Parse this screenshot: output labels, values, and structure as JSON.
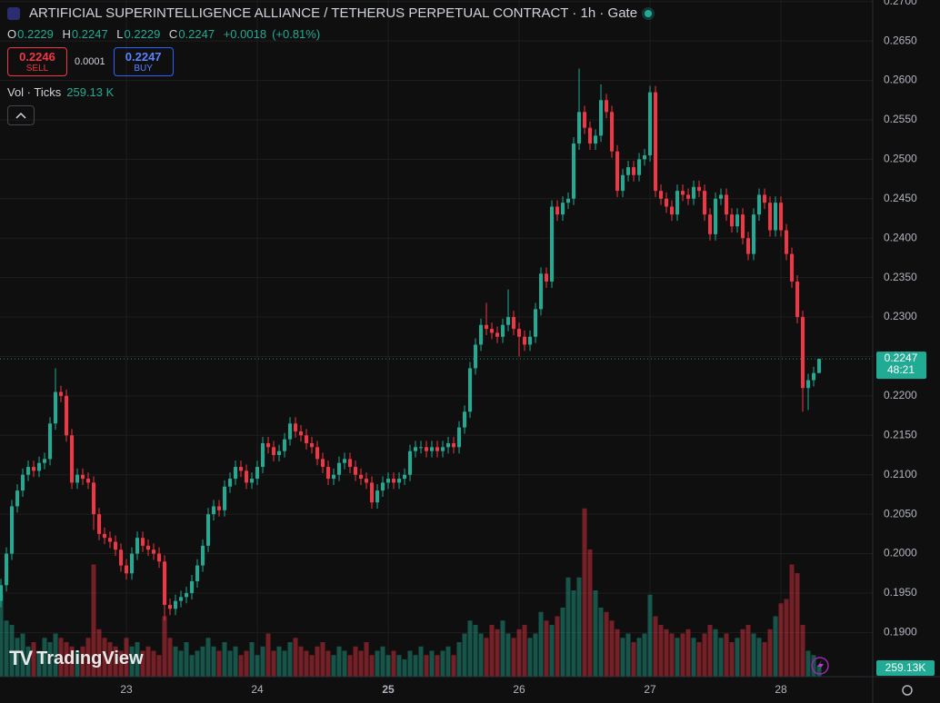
{
  "chart_data": {
    "type": "candlestick",
    "title": "ARTIFICIAL SUPERINTELLIGENCE ALLIANCE / TETHERUS PERPETUAL CONTRACT · 1h · Gate",
    "ohlc_labels": [
      "O",
      "H",
      "L",
      "C"
    ],
    "change": "+0.0018",
    "change_pct": "(+0.81%)",
    "trade": {
      "sell_price": "0.2246",
      "sell_label": "SELL",
      "spread": "0.0001",
      "buy_price": "0.2247",
      "buy_label": "BUY"
    },
    "volume_title": "Vol · Ticks",
    "volume_header_label": "259.13 K",
    "last_volume_label": "259.13K",
    "countdown": "48:21",
    "brand": "TradingView",
    "up_color": "#22ab94",
    "down_color": "#f23645",
    "grid": true,
    "xlim": [
      -0.17,
      159.83
    ],
    "xticks": [
      {
        "value": 23,
        "label": "23"
      },
      {
        "value": 47,
        "label": "24"
      },
      {
        "value": 71,
        "label": "25"
      },
      {
        "value": 95,
        "label": "26"
      },
      {
        "value": 119,
        "label": "27"
      },
      {
        "value": 143,
        "label": "28"
      }
    ],
    "ylim": [
      0.1844,
      0.2702
    ],
    "yticks": [
      {
        "value": 0.19,
        "label": "0.1900"
      },
      {
        "value": 0.195,
        "label": "0.1950"
      },
      {
        "value": 0.2,
        "label": "0.2000"
      },
      {
        "value": 0.205,
        "label": "0.2050"
      },
      {
        "value": 0.21,
        "label": "0.2100"
      },
      {
        "value": 0.215,
        "label": "0.2150"
      },
      {
        "value": 0.22,
        "label": "0.2200"
      },
      {
        "value": 0.225,
        "label": "0.2250"
      },
      {
        "value": 0.23,
        "label": "0.2300"
      },
      {
        "value": 0.235,
        "label": "0.2350"
      },
      {
        "value": 0.24,
        "label": "0.2400"
      },
      {
        "value": 0.245,
        "label": "0.2450"
      },
      {
        "value": 0.25,
        "label": "0.2500"
      },
      {
        "value": 0.255,
        "label": "0.2550"
      },
      {
        "value": 0.26,
        "label": "0.2600"
      },
      {
        "value": 0.265,
        "label": "0.2650"
      },
      {
        "value": 0.27,
        "label": "0.2700"
      }
    ],
    "volume_lim": [
      0,
      4000
    ],
    "open": [
      0.194,
      0.196,
      0.2,
      0.206,
      0.208,
      0.21,
      0.211,
      0.2105,
      0.2115,
      0.212,
      0.2165,
      0.2205,
      0.22,
      0.215,
      0.209,
      0.21,
      0.2095,
      0.209,
      0.205,
      0.2025,
      0.202,
      0.2015,
      0.2005,
      0.1985,
      0.1975,
      0.2,
      0.202,
      0.201,
      0.2005,
      0.2,
      0.199,
      0.1935,
      0.193,
      0.194,
      0.1945,
      0.195,
      0.1965,
      0.1985,
      0.201,
      0.205,
      0.206,
      0.2055,
      0.2085,
      0.2095,
      0.211,
      0.2105,
      0.209,
      0.2095,
      0.211,
      0.214,
      0.2135,
      0.2125,
      0.213,
      0.2145,
      0.2165,
      0.2155,
      0.215,
      0.214,
      0.2135,
      0.212,
      0.211,
      0.2095,
      0.21,
      0.2115,
      0.212,
      0.211,
      0.21,
      0.2095,
      0.209,
      0.2065,
      0.208,
      0.209,
      0.2095,
      0.209,
      0.2095,
      0.21,
      0.213,
      0.2135,
      0.2135,
      0.213,
      0.2135,
      0.213,
      0.2135,
      0.214,
      0.2135,
      0.216,
      0.218,
      0.2235,
      0.2265,
      0.229,
      0.2285,
      0.228,
      0.2275,
      0.229,
      0.23,
      0.2285,
      0.2275,
      0.2265,
      0.2275,
      0.231,
      0.2355,
      0.2345,
      0.244,
      0.243,
      0.2445,
      0.245,
      0.252,
      0.256,
      0.254,
      0.252,
      0.253,
      0.2575,
      0.256,
      0.251,
      0.246,
      0.248,
      0.249,
      0.248,
      0.25,
      0.2505,
      0.2585,
      0.246,
      0.245,
      0.244,
      0.243,
      0.246,
      0.2455,
      0.245,
      0.2465,
      0.246,
      0.243,
      0.2405,
      0.245,
      0.2455,
      0.243,
      0.2415,
      0.243,
      0.24,
      0.238,
      0.243,
      0.2455,
      0.2445,
      0.241,
      0.2445,
      0.241,
      0.238,
      0.2345,
      0.23,
      0.221,
      0.222,
      0.2229
    ],
    "high": [
      0.1968,
      0.2008,
      0.2068,
      0.2088,
      0.2108,
      0.2118,
      0.2118,
      0.2123,
      0.2128,
      0.2173,
      0.2235,
      0.2213,
      0.2208,
      0.2158,
      0.2108,
      0.2108,
      0.2103,
      0.2098,
      0.2058,
      0.2033,
      0.2028,
      0.2023,
      0.2013,
      0.1993,
      0.2008,
      0.2028,
      0.2028,
      0.2018,
      0.2013,
      0.2008,
      0.1998,
      0.1943,
      0.1948,
      0.1953,
      0.1958,
      0.1973,
      0.1993,
      0.2018,
      0.2058,
      0.2068,
      0.2068,
      0.2093,
      0.2103,
      0.2118,
      0.2118,
      0.2113,
      0.2103,
      0.2118,
      0.2148,
      0.2148,
      0.2143,
      0.2138,
      0.2153,
      0.2173,
      0.2173,
      0.2163,
      0.2158,
      0.2148,
      0.2143,
      0.2128,
      0.2118,
      0.2108,
      0.2123,
      0.2128,
      0.2128,
      0.2118,
      0.2108,
      0.2103,
      0.2098,
      0.2088,
      0.2098,
      0.2103,
      0.2103,
      0.2103,
      0.2108,
      0.2138,
      0.2143,
      0.2143,
      0.2143,
      0.2143,
      0.2143,
      0.2143,
      0.2148,
      0.2148,
      0.2168,
      0.2188,
      0.2243,
      0.2273,
      0.2298,
      0.2318,
      0.2293,
      0.2288,
      0.2298,
      0.2335,
      0.2308,
      0.2293,
      0.2283,
      0.2283,
      0.2318,
      0.2363,
      0.2363,
      0.2448,
      0.2448,
      0.2453,
      0.2458,
      0.2528,
      0.2615,
      0.2568,
      0.2548,
      0.2538,
      0.2595,
      0.2583,
      0.2568,
      0.2518,
      0.2488,
      0.2498,
      0.2498,
      0.2508,
      0.2513,
      0.2593,
      0.2593,
      0.2468,
      0.2458,
      0.2448,
      0.2468,
      0.2468,
      0.2463,
      0.2473,
      0.2473,
      0.2468,
      0.2438,
      0.2458,
      0.2463,
      0.2463,
      0.2438,
      0.2438,
      0.2438,
      0.2408,
      0.2438,
      0.2463,
      0.2463,
      0.2453,
      0.2453,
      0.2453,
      0.2418,
      0.2388,
      0.2353,
      0.2308,
      0.2228,
      0.2237,
      0.2247
    ],
    "low": [
      0.1932,
      0.1952,
      0.1992,
      0.2052,
      0.2072,
      0.2092,
      0.2097,
      0.2097,
      0.2107,
      0.2112,
      0.2157,
      0.2192,
      0.2142,
      0.2082,
      0.2082,
      0.2087,
      0.2082,
      0.203,
      0.2017,
      0.2012,
      0.2007,
      0.1997,
      0.1977,
      0.1967,
      0.1967,
      0.1992,
      0.2002,
      0.1997,
      0.1992,
      0.1982,
      0.1915,
      0.1922,
      0.1922,
      0.1932,
      0.1937,
      0.1942,
      0.1957,
      0.1977,
      0.2002,
      0.2042,
      0.2047,
      0.2047,
      0.2077,
      0.2087,
      0.2097,
      0.2082,
      0.2082,
      0.2087,
      0.2102,
      0.2127,
      0.2117,
      0.2117,
      0.2122,
      0.2137,
      0.2147,
      0.2142,
      0.2132,
      0.2127,
      0.2112,
      0.2102,
      0.2087,
      0.2087,
      0.2092,
      0.2107,
      0.2102,
      0.2092,
      0.2087,
      0.2082,
      0.2057,
      0.2057,
      0.2072,
      0.2082,
      0.2082,
      0.2082,
      0.2087,
      0.2092,
      0.2122,
      0.2127,
      0.2122,
      0.2122,
      0.2122,
      0.2122,
      0.2127,
      0.2127,
      0.2127,
      0.2152,
      0.2172,
      0.2227,
      0.2257,
      0.2277,
      0.2272,
      0.2267,
      0.2267,
      0.2282,
      0.2277,
      0.225,
      0.2257,
      0.2257,
      0.2267,
      0.2302,
      0.2337,
      0.2337,
      0.2422,
      0.2422,
      0.2437,
      0.2442,
      0.2512,
      0.2532,
      0.2512,
      0.2512,
      0.2522,
      0.2552,
      0.2502,
      0.2452,
      0.2452,
      0.2472,
      0.2472,
      0.2472,
      0.2492,
      0.2497,
      0.2452,
      0.2442,
      0.2432,
      0.2422,
      0.2422,
      0.2447,
      0.2442,
      0.2442,
      0.2452,
      0.2422,
      0.2397,
      0.2397,
      0.2442,
      0.2422,
      0.2407,
      0.2407,
      0.2392,
      0.2372,
      0.2372,
      0.2422,
      0.2437,
      0.2402,
      0.2402,
      0.2402,
      0.2372,
      0.2337,
      0.2292,
      0.218,
      0.2182,
      0.2212,
      0.2229
    ],
    "close": [
      0.196,
      0.2,
      0.206,
      0.208,
      0.21,
      0.211,
      0.2105,
      0.2115,
      0.212,
      0.2165,
      0.2205,
      0.22,
      0.215,
      0.209,
      0.21,
      0.2095,
      0.209,
      0.205,
      0.2025,
      0.202,
      0.2015,
      0.2005,
      0.1985,
      0.1975,
      0.2,
      0.202,
      0.201,
      0.2005,
      0.2,
      0.199,
      0.1935,
      0.193,
      0.194,
      0.1945,
      0.195,
      0.1965,
      0.1985,
      0.201,
      0.205,
      0.206,
      0.2055,
      0.2085,
      0.2095,
      0.211,
      0.2105,
      0.209,
      0.2095,
      0.211,
      0.214,
      0.2135,
      0.2125,
      0.213,
      0.2145,
      0.2165,
      0.2155,
      0.215,
      0.214,
      0.2135,
      0.212,
      0.211,
      0.2095,
      0.21,
      0.2115,
      0.212,
      0.211,
      0.21,
      0.2095,
      0.209,
      0.2065,
      0.208,
      0.209,
      0.2095,
      0.209,
      0.2095,
      0.21,
      0.213,
      0.2135,
      0.2135,
      0.213,
      0.2135,
      0.213,
      0.2135,
      0.214,
      0.2135,
      0.216,
      0.218,
      0.2235,
      0.2265,
      0.229,
      0.2285,
      0.228,
      0.2275,
      0.229,
      0.23,
      0.2285,
      0.2275,
      0.2265,
      0.2275,
      0.231,
      0.2355,
      0.2345,
      0.244,
      0.243,
      0.2445,
      0.245,
      0.252,
      0.256,
      0.254,
      0.252,
      0.253,
      0.2575,
      0.256,
      0.251,
      0.246,
      0.248,
      0.249,
      0.248,
      0.25,
      0.2505,
      0.2585,
      0.246,
      0.245,
      0.244,
      0.243,
      0.246,
      0.2455,
      0.245,
      0.2465,
      0.246,
      0.243,
      0.2405,
      0.245,
      0.2455,
      0.243,
      0.2415,
      0.243,
      0.24,
      0.238,
      0.243,
      0.2455,
      0.2445,
      0.241,
      0.2445,
      0.241,
      0.238,
      0.2345,
      0.23,
      0.221,
      0.222,
      0.2229,
      0.2247
    ],
    "volume": [
      1900,
      1300,
      1200,
      900,
      1000,
      700,
      800,
      600,
      900,
      800,
      1000,
      900,
      800,
      700,
      600,
      700,
      900,
      2600,
      1100,
      900,
      800,
      700,
      600,
      900,
      700,
      800,
      600,
      700,
      600,
      500,
      1400,
      900,
      700,
      600,
      800,
      500,
      600,
      700,
      900,
      700,
      600,
      800,
      600,
      700,
      500,
      600,
      800,
      500,
      700,
      1000,
      600,
      700,
      600,
      800,
      900,
      700,
      600,
      500,
      700,
      800,
      600,
      500,
      700,
      600,
      500,
      700,
      600,
      800,
      500,
      600,
      700,
      500,
      600,
      500,
      400,
      600,
      500,
      700,
      500,
      600,
      500,
      600,
      700,
      500,
      800,
      1000,
      1300,
      1200,
      1000,
      900,
      1200,
      1100,
      1300,
      1000,
      900,
      1100,
      1200,
      900,
      1000,
      1500,
      1300,
      1200,
      1400,
      1600,
      2300,
      2000,
      2300,
      3900,
      2950,
      2000,
      1600,
      1500,
      1300,
      1100,
      900,
      1000,
      800,
      900,
      1000,
      1900,
      1400,
      1200,
      1100,
      1000,
      900,
      1000,
      1100,
      900,
      800,
      1000,
      1200,
      1100,
      900,
      1000,
      800,
      900,
      1100,
      1200,
      1000,
      900,
      800,
      1100,
      1400,
      1700,
      1800,
      2600,
      2400,
      1200,
      600,
      500,
      259.13
    ]
  }
}
